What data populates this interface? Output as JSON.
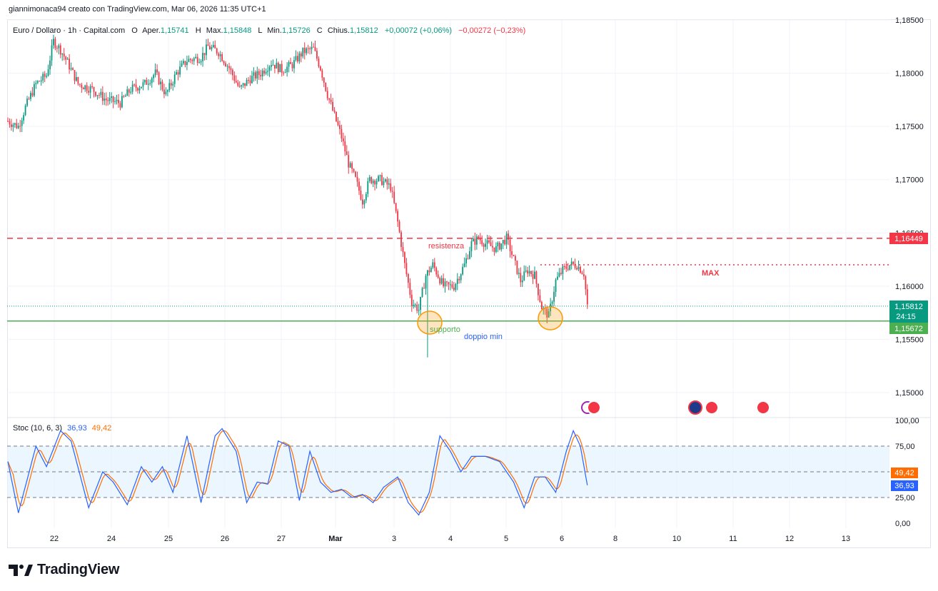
{
  "header": {
    "attribution": "giannimonaca94 creato con TradingView.com, Mar 06, 2026 11:35 UTC+1"
  },
  "legend": {
    "symbol": "Euro / Dollaro · 1h · Capital.com",
    "open_label": "O",
    "open_prefix": "Aper.",
    "open": "1,15741",
    "high_label": "H",
    "high_prefix": "Max.",
    "high": "1,15848",
    "low_label": "L",
    "low_prefix": "Min.",
    "low": "1,15726",
    "close_label": "C",
    "close_prefix": "Chius.",
    "close": "1,15812",
    "change": "+0,00072 (+0,06%)",
    "day_change": "−0,00272 (−0,23%)"
  },
  "stoch_legend": {
    "name": "Stoc (10, 6, 3)",
    "k": "36,93",
    "d": "49,42"
  },
  "annotations": {
    "resistance": "resistenza",
    "support": "supporto",
    "double_bottom": "doppio min",
    "max": "MAX"
  },
  "price_labels": {
    "resistance": "1,16449",
    "last": "1,15812",
    "countdown": "24:15",
    "support": "1,15672",
    "stoch_d": "49,42",
    "stoch_k": "36,93"
  },
  "colors": {
    "up": "#089981",
    "down": "#f23645",
    "support": "#4caf50",
    "resistance": "#f23645",
    "stoch_k": "#2962ff",
    "stoch_d": "#ff6d00",
    "band": "#e3f2fd",
    "circle": "#ff9800",
    "annot_blue": "#2962ff"
  },
  "logo": {
    "text": "TradingView"
  },
  "chart_data": {
    "type": "candlestick",
    "symbol": "EURUSD",
    "timeframe": "1h",
    "y_ticks": [
      "1,18500",
      "1,18000",
      "1,17500",
      "1,17000",
      "1,16500",
      "1,16000",
      "1,15500",
      "1,15000"
    ],
    "x_ticks": [
      "22",
      "24",
      "25",
      "26",
      "27",
      "Mar",
      "3",
      "4",
      "5",
      "6",
      "8",
      "10",
      "11",
      "12",
      "13"
    ],
    "ylim": [
      1.148,
      1.186
    ],
    "resistance": 1.16449,
    "support": 1.15672,
    "last": 1.15812,
    "max_level": 1.162,
    "key_points": [
      [
        0,
        1.1755
      ],
      [
        6,
        1.175
      ],
      [
        10,
        1.1768
      ],
      [
        16,
        1.179
      ],
      [
        22,
        1.1798
      ],
      [
        26,
        1.183
      ],
      [
        30,
        1.1822
      ],
      [
        34,
        1.181
      ],
      [
        40,
        1.179
      ],
      [
        48,
        1.1785
      ],
      [
        56,
        1.1775
      ],
      [
        64,
        1.1772
      ],
      [
        70,
        1.1785
      ],
      [
        78,
        1.179
      ],
      [
        84,
        1.18
      ],
      [
        90,
        1.178
      ],
      [
        96,
        1.18
      ],
      [
        102,
        1.1812
      ],
      [
        110,
        1.1815
      ],
      [
        114,
        1.1825
      ],
      [
        120,
        1.182
      ],
      [
        126,
        1.1805
      ],
      [
        132,
        1.1785
      ],
      [
        138,
        1.1795
      ],
      [
        144,
        1.18
      ],
      [
        150,
        1.181
      ],
      [
        156,
        1.1803
      ],
      [
        162,
        1.1808
      ],
      [
        168,
        1.182
      ],
      [
        174,
        1.1823
      ],
      [
        178,
        1.1805
      ],
      [
        182,
        1.178
      ],
      [
        186,
        1.176
      ],
      [
        190,
        1.174
      ],
      [
        194,
        1.1715
      ],
      [
        198,
        1.17
      ],
      [
        202,
        1.168
      ],
      [
        206,
        1.17
      ],
      [
        212,
        1.17
      ],
      [
        218,
        1.1693
      ],
      [
        222,
        1.166
      ],
      [
        226,
        1.162
      ],
      [
        230,
        1.1585
      ],
      [
        234,
        1.1578
      ],
      [
        238,
        1.161
      ],
      [
        242,
        1.162
      ],
      [
        248,
        1.16
      ],
      [
        254,
        1.16
      ],
      [
        260,
        1.162
      ],
      [
        264,
        1.164
      ],
      [
        268,
        1.1645
      ],
      [
        272,
        1.164
      ],
      [
        278,
        1.1635
      ],
      [
        284,
        1.1645
      ],
      [
        288,
        1.1625
      ],
      [
        292,
        1.1605
      ],
      [
        296,
        1.1615
      ],
      [
        300,
        1.161
      ],
      [
        304,
        1.158
      ],
      [
        308,
        1.1572
      ],
      [
        312,
        1.1605
      ],
      [
        316,
        1.1615
      ],
      [
        320,
        1.162
      ],
      [
        324,
        1.162
      ],
      [
        328,
        1.1612
      ],
      [
        330,
        1.1582
      ]
    ],
    "stoch_ticks": [
      "100,00",
      "75,00",
      "25,00",
      "0,00"
    ],
    "stoch_levels": [
      75,
      50,
      25
    ],
    "stoch_k_points": [
      [
        0,
        60
      ],
      [
        6,
        10
      ],
      [
        16,
        75
      ],
      [
        22,
        55
      ],
      [
        30,
        90
      ],
      [
        36,
        80
      ],
      [
        46,
        15
      ],
      [
        54,
        50
      ],
      [
        60,
        40
      ],
      [
        68,
        18
      ],
      [
        76,
        55
      ],
      [
        82,
        40
      ],
      [
        88,
        55
      ],
      [
        94,
        30
      ],
      [
        102,
        85
      ],
      [
        110,
        20
      ],
      [
        118,
        85
      ],
      [
        122,
        92
      ],
      [
        130,
        70
      ],
      [
        136,
        20
      ],
      [
        142,
        40
      ],
      [
        148,
        38
      ],
      [
        154,
        80
      ],
      [
        160,
        75
      ],
      [
        166,
        22
      ],
      [
        172,
        70
      ],
      [
        178,
        40
      ],
      [
        184,
        30
      ],
      [
        190,
        33
      ],
      [
        196,
        25
      ],
      [
        202,
        28
      ],
      [
        208,
        20
      ],
      [
        214,
        35
      ],
      [
        222,
        45
      ],
      [
        228,
        20
      ],
      [
        234,
        8
      ],
      [
        240,
        30
      ],
      [
        246,
        85
      ],
      [
        252,
        70
      ],
      [
        258,
        50
      ],
      [
        264,
        65
      ],
      [
        272,
        65
      ],
      [
        280,
        60
      ],
      [
        288,
        40
      ],
      [
        294,
        15
      ],
      [
        300,
        45
      ],
      [
        306,
        45
      ],
      [
        312,
        30
      ],
      [
        318,
        70
      ],
      [
        322,
        90
      ],
      [
        326,
        75
      ],
      [
        330,
        36.93
      ]
    ],
    "stoch_d_last": 49.42
  }
}
